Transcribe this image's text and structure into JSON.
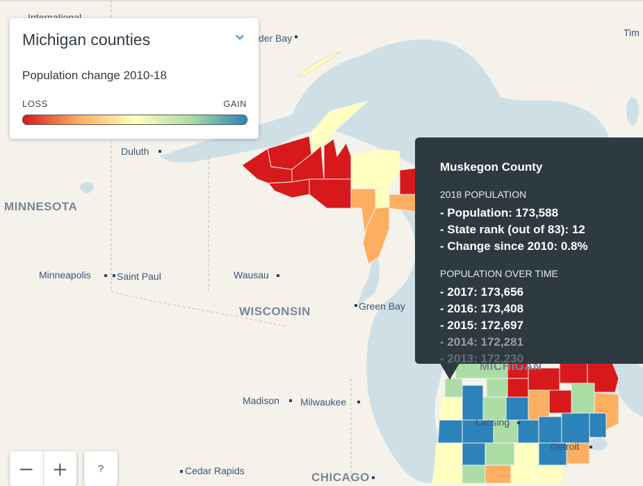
{
  "panel": {
    "title": "Michigan counties",
    "subtitle": "Population change 2010-18",
    "legend_min": "LOSS",
    "legend_max": "GAIN",
    "legend_colors": [
      "#d7191c",
      "#fdae61",
      "#ffffbf",
      "#abdda4",
      "#2b83ba"
    ]
  },
  "tooltip": {
    "county": "Muskegon County",
    "section1": "2018 POPULATION",
    "stats": [
      "- Population: 173,588",
      "- State rank (out of 83): 12",
      "- Change since 2010: 0.8%"
    ],
    "section2": "POPULATION OVER TIME",
    "history": [
      "- 2017: 173,656",
      "- 2016: 173,408",
      "- 2015: 172,697",
      "- 2014: 172,281",
      "- 2013: 172,230"
    ]
  },
  "places": {
    "international": "International",
    "thunder_bay": "Thunder Bay",
    "timmins": "Tim",
    "duluth": "Duluth",
    "minneapolis": "Minneapolis",
    "saint_paul": "Saint Paul",
    "wausau": "Wausau",
    "green_bay": "Green Bay",
    "madison": "Madison",
    "milwaukee": "Milwaukee",
    "lansing": "Lansing",
    "detroit": "Detroit",
    "cedar_rapids": "Cedar Rapids",
    "chicago": "CHICAGO",
    "minnesota": "MINNESOTA",
    "wisconsin": "WISCONSIN",
    "michigan": "MICHIGAN"
  },
  "controls": {
    "zoom_out": "−",
    "zoom_in": "+",
    "help": "?"
  },
  "colors": {
    "water": "#cfdfe6",
    "land": "#f5f2ec"
  }
}
